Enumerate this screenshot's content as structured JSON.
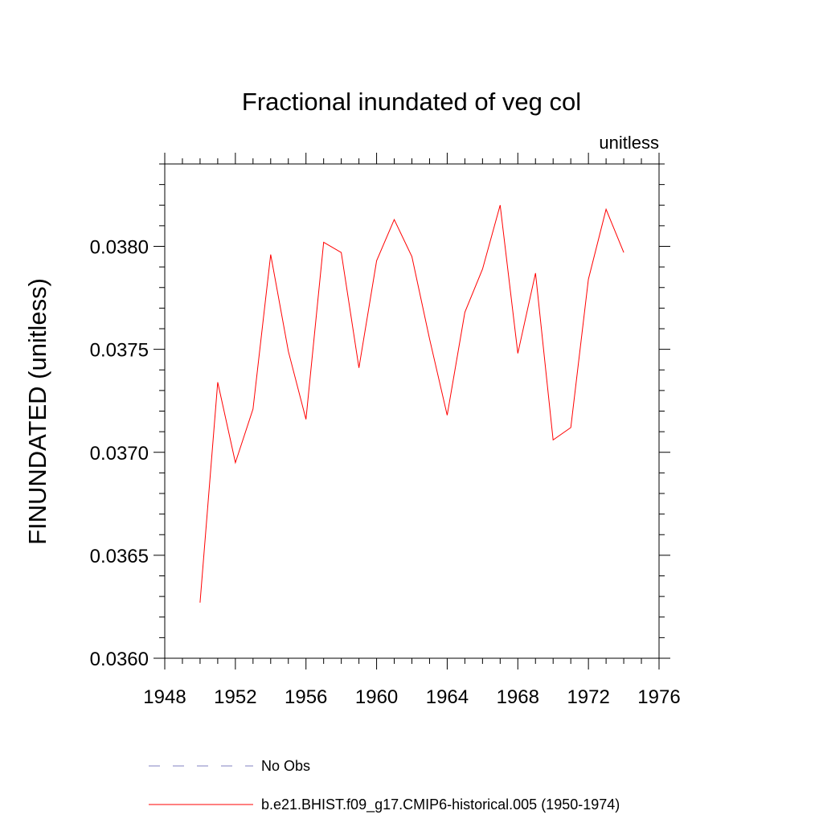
{
  "chart_data": {
    "type": "line",
    "title": "Fractional inundated of veg col",
    "units_label": "unitless",
    "ylabel": "FINUNDATED  (unitless)",
    "xlabel": "",
    "xlim": [
      1948,
      1976
    ],
    "ylim": [
      0.036,
      0.0384
    ],
    "x_ticks": [
      "1948",
      "1952",
      "1956",
      "1960",
      "1964",
      "1968",
      "1972",
      "1976"
    ],
    "y_ticks": [
      "0.0360",
      "0.0365",
      "0.0370",
      "0.0375",
      "0.0380"
    ],
    "grid": false,
    "legend_placement": "bottom",
    "series": [
      {
        "name": "b.e21.BHIST.f09_g17.CMIP6-historical.005 (1950-1974)",
        "color": "#ff0000",
        "style": "solid",
        "x": [
          1950,
          1951,
          1952,
          1953,
          1954,
          1955,
          1956,
          1957,
          1958,
          1959,
          1960,
          1961,
          1962,
          1963,
          1964,
          1965,
          1966,
          1967,
          1968,
          1969,
          1970,
          1971,
          1972,
          1973,
          1974
        ],
        "values": [
          0.03627,
          0.03734,
          0.03695,
          0.03721,
          0.03796,
          0.03749,
          0.03716,
          0.03802,
          0.03797,
          0.03741,
          0.03793,
          0.03813,
          0.03795,
          0.03755,
          0.03718,
          0.03768,
          0.03789,
          0.0382,
          0.03748,
          0.03787,
          0.03706,
          0.03712,
          0.03784,
          0.03818,
          0.03797
        ]
      }
    ],
    "legend": [
      {
        "label": "No Obs",
        "color": "#8080c0",
        "style": "dashed"
      },
      {
        "label": "b.e21.BHIST.f09_g17.CMIP6-historical.005 (1950-1974)",
        "color": "#ff0000",
        "style": "solid"
      }
    ]
  }
}
